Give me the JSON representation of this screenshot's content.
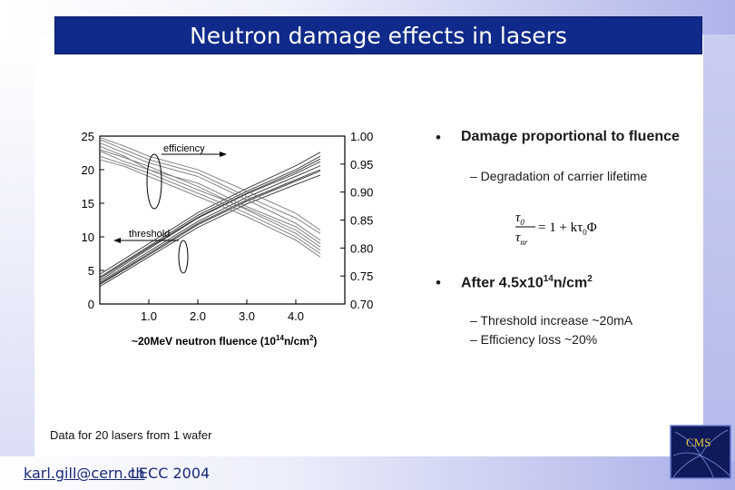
{
  "title": "Neutron damage effects in lasers",
  "bullets": [
    {
      "marker": "•",
      "text": "Damage proportional to fluence",
      "sub": [
        "– Degradation of carrier lifetime"
      ]
    },
    {
      "marker": "•",
      "text_main": "After 4.5x10",
      "text_sup": "14",
      "text_after": "n/cm",
      "text_sup2": "2",
      "sub": [
        "– Threshold increase ~20mA",
        "– Efficiency loss ~20%"
      ]
    }
  ],
  "formula": {
    "numerator_1": "τ",
    "numerator_1_sub": "0",
    "denominator_1": "τ",
    "denominator_1_sub": "nr",
    "rhs": "= 1 + kτ",
    "rhs_sub": "0",
    "rhs_tail": "Φ"
  },
  "footnote": "Data for 20 lasers from 1 wafer",
  "footer": {
    "email": "karl.gill@cern.ch",
    "conference": "LECC 2004"
  },
  "logo_text": "CMS",
  "chart_data": {
    "type": "line",
    "left_axis_ticks": [
      "25",
      "20",
      "15",
      "10",
      "5",
      "0"
    ],
    "right_axis_ticks": [
      "1.00",
      "0.95",
      "0.90",
      "0.85",
      "0.80",
      "0.75",
      "0.70"
    ],
    "x_ticks": [
      "1.0",
      "2.0",
      "3.0",
      "4.0"
    ],
    "xlabel_main": "~20MeV neutron fluence (10",
    "xlabel_sup": "14",
    "xlabel_unit": "n/cm",
    "xlabel_sup2": "2",
    "xlabel_close": ")",
    "xlim": [
      0,
      5.0
    ],
    "ylim_left": [
      0,
      25
    ],
    "ylim_right": [
      0.7,
      1.0
    ],
    "annotations": [
      "efficiency",
      "threshold"
    ],
    "series": [
      {
        "group": "threshold",
        "x": [
          0,
          1,
          2,
          3,
          4,
          4.5
        ],
        "y": [
          3.0,
          7.5,
          12.0,
          15.5,
          18.5,
          20.0
        ]
      },
      {
        "group": "threshold",
        "x": [
          0,
          1,
          2,
          3,
          4,
          4.5
        ],
        "y": [
          3.5,
          8.2,
          12.8,
          16.4,
          19.4,
          21.2
        ]
      },
      {
        "group": "threshold",
        "x": [
          0,
          1,
          2,
          3,
          4,
          4.5
        ],
        "y": [
          4.0,
          8.6,
          13.2,
          16.8,
          20.0,
          22.0
        ]
      },
      {
        "group": "threshold",
        "x": [
          0,
          1,
          2,
          3,
          4,
          4.5
        ],
        "y": [
          2.6,
          7.0,
          11.4,
          14.9,
          17.8,
          19.2
        ]
      },
      {
        "group": "threshold",
        "x": [
          0,
          1,
          2,
          3,
          4,
          4.5
        ],
        "y": [
          4.4,
          9.0,
          13.6,
          17.2,
          20.6,
          22.6
        ]
      },
      {
        "group": "threshold",
        "x": [
          0,
          1,
          2,
          3,
          4,
          4.5
        ],
        "y": [
          3.2,
          7.8,
          12.3,
          15.9,
          19.0,
          20.6
        ]
      },
      {
        "group": "threshold",
        "x": [
          0,
          1,
          2,
          3,
          4,
          4.5
        ],
        "y": [
          3.8,
          8.4,
          12.9,
          16.5,
          19.7,
          21.6
        ]
      },
      {
        "group": "threshold",
        "x": [
          0,
          1,
          2,
          3,
          4,
          4.5
        ],
        "y": [
          2.9,
          7.3,
          11.8,
          15.3,
          18.3,
          19.8
        ]
      },
      {
        "group": "efficiency",
        "x": [
          0,
          0.5,
          1,
          2,
          3,
          4,
          4.5
        ],
        "y": [
          24.0,
          22.5,
          21.0,
          19.0,
          15.5,
          12.0,
          9.5
        ]
      },
      {
        "group": "efficiency",
        "x": [
          0,
          0.5,
          1,
          2,
          3,
          4,
          4.5
        ],
        "y": [
          23.0,
          21.8,
          20.5,
          17.5,
          14.0,
          10.5,
          8.0
        ]
      },
      {
        "group": "efficiency",
        "x": [
          0,
          0.5,
          1,
          2,
          3,
          4,
          4.5
        ],
        "y": [
          24.5,
          23.0,
          21.5,
          19.5,
          16.0,
          12.8,
          10.5
        ]
      },
      {
        "group": "efficiency",
        "x": [
          0,
          0.5,
          1,
          2,
          3,
          4,
          4.5
        ],
        "y": [
          22.0,
          20.8,
          19.5,
          16.5,
          13.5,
          10.0,
          7.5
        ]
      },
      {
        "group": "efficiency",
        "x": [
          0,
          0.5,
          1,
          2,
          3,
          4,
          4.5
        ],
        "y": [
          23.5,
          22.0,
          20.0,
          18.0,
          14.5,
          11.5,
          9.0
        ]
      },
      {
        "group": "efficiency",
        "x": [
          0,
          0.5,
          1,
          2,
          3,
          4,
          4.5
        ],
        "y": [
          21.5,
          20.5,
          19.0,
          16.0,
          13.0,
          9.5,
          7.0
        ]
      },
      {
        "group": "efficiency",
        "x": [
          0,
          0.5,
          1,
          2,
          3,
          4,
          4.5
        ],
        "y": [
          24.8,
          23.5,
          22.0,
          20.0,
          16.8,
          13.5,
          11.0
        ]
      },
      {
        "group": "efficiency",
        "x": [
          0,
          0.5,
          1,
          2,
          3,
          4,
          4.5
        ],
        "y": [
          22.8,
          21.2,
          20.0,
          17.0,
          14.2,
          11.0,
          8.5
        ]
      }
    ]
  }
}
